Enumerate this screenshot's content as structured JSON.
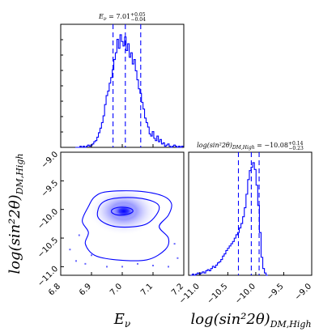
{
  "chart_data": [
    {
      "type": "histogram",
      "panel": "E_nu marginal",
      "title": {
        "main": "E",
        "sub": "ν",
        "value": " = 7.01",
        "sup": "+0.05",
        "low": "−0.04"
      },
      "xlim": [
        6.8,
        7.2
      ],
      "quantiles": [
        6.97,
        7.01,
        7.06
      ],
      "x": [
        6.85,
        6.855,
        6.86,
        6.865,
        6.87,
        6.875,
        6.88,
        6.885,
        6.89,
        6.895,
        6.9,
        6.905,
        6.91,
        6.915,
        6.92,
        6.925,
        6.93,
        6.935,
        6.94,
        6.945,
        6.95,
        6.955,
        6.96,
        6.965,
        6.97,
        6.975,
        6.98,
        6.985,
        6.99,
        6.995,
        7.0,
        7.005,
        7.01,
        7.015,
        7.02,
        7.025,
        7.03,
        7.035,
        7.04,
        7.045,
        7.05,
        7.055,
        7.06,
        7.065,
        7.07,
        7.075,
        7.08,
        7.085,
        7.09,
        7.095,
        7.1,
        7.105,
        7.11,
        7.115,
        7.12,
        7.125,
        7.13,
        7.135,
        7.14,
        7.145,
        7.15,
        7.155,
        7.16,
        7.165,
        7.17,
        7.175,
        7.18,
        7.185,
        7.19,
        7.195
      ],
      "values": [
        0,
        0,
        0,
        1,
        0,
        1,
        0,
        1,
        2,
        1,
        2,
        3,
        5,
        6,
        9,
        13,
        17,
        22,
        28,
        38,
        46,
        50,
        57,
        62,
        69,
        78,
        84,
        96,
        88,
        100,
        94,
        90,
        98,
        86,
        92,
        80,
        84,
        74,
        78,
        68,
        60,
        52,
        48,
        40,
        34,
        26,
        22,
        18,
        12,
        10,
        14,
        8,
        6,
        10,
        5,
        7,
        3,
        4,
        1,
        2,
        3,
        1,
        0,
        1,
        2,
        1,
        0,
        1,
        0,
        1
      ]
    },
    {
      "type": "histogram",
      "panel": "log(sin^2 2theta)_{DM,High} marginal",
      "title": {
        "main": "log(sin²2θ)",
        "sub": "DM,High",
        "value": " = −10.08",
        "sup": "+0.14",
        "low": "−0.23"
      },
      "xlim": [
        -11.2,
        -9.0
      ],
      "xticks": [
        -11.0,
        -10.5,
        -10.0,
        -9.5,
        -9.0
      ],
      "xtick_labels": [
        "−11.0",
        "−10.5",
        "−10.0",
        "−9.5",
        "−9.0"
      ],
      "xlabel": "log(sin²2θ)_{DM,High}",
      "quantiles": [
        -10.31,
        -10.08,
        -9.94
      ],
      "x": [
        -11.15,
        -11.12,
        -11.09,
        -11.06,
        -11.03,
        -11.0,
        -10.97,
        -10.94,
        -10.91,
        -10.88,
        -10.85,
        -10.82,
        -10.79,
        -10.76,
        -10.73,
        -10.7,
        -10.67,
        -10.64,
        -10.61,
        -10.58,
        -10.55,
        -10.52,
        -10.49,
        -10.46,
        -10.43,
        -10.4,
        -10.37,
        -10.34,
        -10.31,
        -10.28,
        -10.25,
        -10.22,
        -10.19,
        -10.16,
        -10.13,
        -10.1,
        -10.07,
        -10.04,
        -10.01,
        -9.98,
        -9.95,
        -9.92,
        -9.89,
        -9.86,
        -9.83,
        -9.8
      ],
      "values": [
        0,
        1,
        0,
        1,
        2,
        1,
        2,
        3,
        2,
        4,
        5,
        4,
        6,
        8,
        7,
        9,
        11,
        12,
        14,
        17,
        19,
        22,
        24,
        26,
        28,
        30,
        33,
        36,
        38,
        42,
        46,
        52,
        60,
        72,
        85,
        93,
        96,
        100,
        94,
        80,
        62,
        38,
        16,
        6,
        2,
        0
      ]
    },
    {
      "type": "contour",
      "panel": "2D joint",
      "xlabel": "E_ν",
      "ylabel": "log(sin²2θ)_{DM,High}",
      "xlim": [
        6.8,
        7.2
      ],
      "ylim": [
        -11.15,
        -9.0
      ],
      "xticks": [
        6.8,
        6.9,
        7.0,
        7.1,
        7.2
      ],
      "xtick_labels": [
        "6.8",
        "6.9",
        "7.0",
        "7.1",
        "7.2"
      ],
      "yticks": [
        -11.0,
        -10.5,
        -10.0,
        -9.5,
        -9.0
      ],
      "ytick_labels": [
        "−11.0",
        "−10.5",
        "−10.0",
        "−9.5",
        "−9.0"
      ],
      "peak": [
        7.005,
        -10.03
      ],
      "contours": [
        {
          "level": "inner",
          "points": [
            [
              6.995,
              -9.96
            ],
            [
              7.025,
              -9.98
            ],
            [
              7.035,
              -10.03
            ],
            [
              7.02,
              -10.08
            ],
            [
              6.99,
              -10.1
            ],
            [
              6.97,
              -10.07
            ],
            [
              6.965,
              -10.02
            ],
            [
              6.975,
              -9.98
            ]
          ]
        },
        {
          "level": "middle",
          "points": [
            [
              6.985,
              -9.8
            ],
            [
              7.05,
              -9.8
            ],
            [
              7.1,
              -9.86
            ],
            [
              7.12,
              -9.95
            ],
            [
              7.11,
              -10.1
            ],
            [
              7.08,
              -10.25
            ],
            [
              7.04,
              -10.3
            ],
            [
              6.98,
              -10.3
            ],
            [
              6.94,
              -10.23
            ],
            [
              6.92,
              -10.12
            ],
            [
              6.925,
              -9.95
            ],
            [
              6.945,
              -9.85
            ]
          ]
        },
        {
          "level": "outer",
          "points": [
            [
              6.95,
              -9.69
            ],
            [
              7.05,
              -9.68
            ],
            [
              7.13,
              -9.76
            ],
            [
              7.16,
              -9.9
            ],
            [
              7.15,
              -10.1
            ],
            [
              7.12,
              -10.3
            ],
            [
              7.15,
              -10.5
            ],
            [
              7.14,
              -10.7
            ],
            [
              7.08,
              -10.88
            ],
            [
              6.98,
              -10.88
            ],
            [
              6.91,
              -10.8
            ],
            [
              6.88,
              -10.6
            ],
            [
              6.89,
              -10.4
            ],
            [
              6.87,
              -10.2
            ],
            [
              6.89,
              -9.95
            ],
            [
              6.91,
              -9.78
            ]
          ]
        }
      ],
      "outliers": [
        [
          6.83,
          -10.7
        ],
        [
          6.85,
          -10.9
        ],
        [
          6.88,
          -10.95
        ],
        [
          6.9,
          -10.8
        ],
        [
          6.95,
          -11.0
        ],
        [
          7.0,
          -11.0
        ],
        [
          7.05,
          -10.95
        ],
        [
          7.1,
          -10.98
        ],
        [
          7.15,
          -11.0
        ],
        [
          7.18,
          -10.85
        ],
        [
          7.17,
          -10.6
        ],
        [
          6.86,
          -10.45
        ]
      ]
    }
  ]
}
